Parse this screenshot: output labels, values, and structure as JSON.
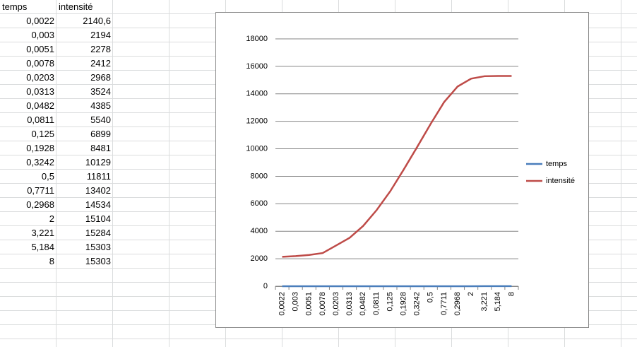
{
  "table": {
    "header": [
      "temps",
      "intensité"
    ],
    "rows": [
      [
        "0,0022",
        "2140,6"
      ],
      [
        "0,003",
        "2194"
      ],
      [
        "0,0051",
        "2278"
      ],
      [
        "0,0078",
        "2412"
      ],
      [
        "0,0203",
        "2968"
      ],
      [
        "0,0313",
        "3524"
      ],
      [
        "0,0482",
        "4385"
      ],
      [
        "0,0811",
        "5540"
      ],
      [
        "0,125",
        "6899"
      ],
      [
        "0,1928",
        "8481"
      ],
      [
        "0,3242",
        "10129"
      ],
      [
        "0,5",
        "11811"
      ],
      [
        "0,7711",
        "13402"
      ],
      [
        "0,2968",
        "14534"
      ],
      [
        "2",
        "15104"
      ],
      [
        "3,221",
        "15284"
      ],
      [
        "5,184",
        "15303"
      ],
      [
        "8",
        "15303"
      ]
    ]
  },
  "chart_data": {
    "type": "line",
    "categories": [
      "0,0022",
      "0,003",
      "0,0051",
      "0,0078",
      "0,0203",
      "0,0313",
      "0,0482",
      "0,0811",
      "0,125",
      "0,1928",
      "0,3242",
      "0,5",
      "0,7711",
      "0,2968",
      "2",
      "3,221",
      "5,184",
      "8"
    ],
    "series": [
      {
        "name": "temps",
        "color": "#4a7ebb",
        "values": [
          0.0022,
          0.003,
          0.0051,
          0.0078,
          0.0203,
          0.0313,
          0.0482,
          0.0811,
          0.125,
          0.1928,
          0.3242,
          0.5,
          0.7711,
          0.2968,
          2,
          3.221,
          5.184,
          8
        ]
      },
      {
        "name": "intensité",
        "color": "#be4b48",
        "values": [
          2140.6,
          2194,
          2278,
          2412,
          2968,
          3524,
          4385,
          5540,
          6899,
          8481,
          10129,
          11811,
          13402,
          14534,
          15104,
          15284,
          15303,
          15303
        ]
      }
    ],
    "ylim": [
      0,
      18000
    ],
    "yticks": [
      0,
      2000,
      4000,
      6000,
      8000,
      10000,
      12000,
      14000,
      16000,
      18000
    ],
    "grid": true,
    "legend": "right"
  }
}
